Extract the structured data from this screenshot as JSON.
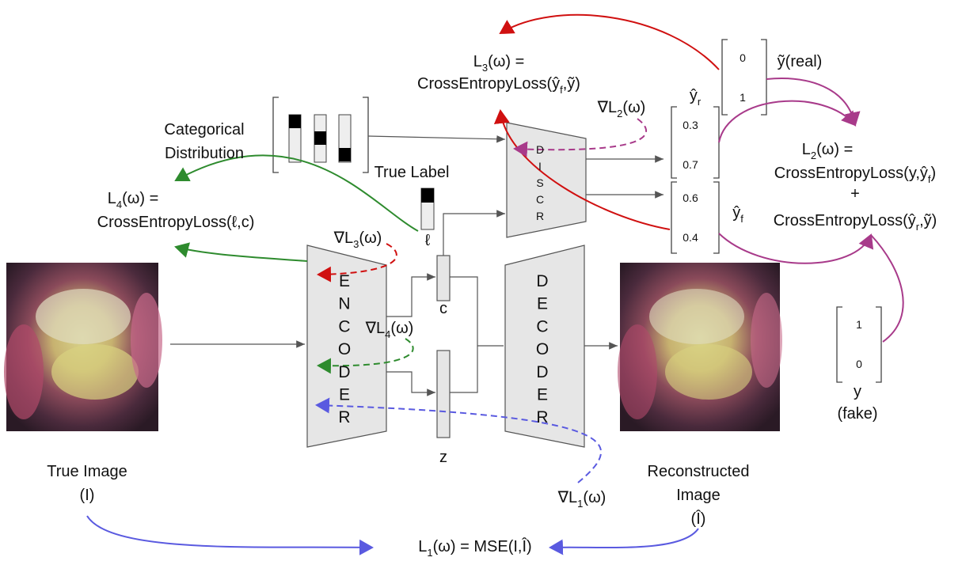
{
  "categorical_distribution": [
    "Categorical",
    "Distribution"
  ],
  "true_label": {
    "title": "True Label",
    "symbol": "ℓ"
  },
  "encoder": {
    "letters": [
      "E",
      "N",
      "C",
      "O",
      "D",
      "E",
      "R"
    ]
  },
  "decoder": {
    "letters": [
      "D",
      "E",
      "C",
      "O",
      "D",
      "E",
      "R"
    ]
  },
  "discriminator": {
    "letters": [
      "D",
      "I",
      "S",
      "C",
      "R"
    ]
  },
  "latent": {
    "c": "c",
    "z": "z"
  },
  "true_image": [
    "True Image",
    "(I)"
  ],
  "reconstructed_image": [
    "Reconstructed",
    "Image",
    "(Î)"
  ],
  "predictions": {
    "real": {
      "label": [
        "ŷ",
        "r"
      ],
      "values": [
        0.3,
        0.7
      ]
    },
    "fake": {
      "label": [
        "ŷ",
        "f"
      ],
      "values": [
        0.6,
        0.4
      ]
    }
  },
  "targets": {
    "real": {
      "values": [
        0,
        1
      ],
      "label": "ỹ(real)"
    },
    "fake": {
      "values": [
        1,
        0
      ],
      "label": [
        "y",
        "(fake)"
      ]
    }
  },
  "losses": {
    "l1": [
      "L",
      "1",
      "(ω) = MSE(I,Î)"
    ],
    "l2": [
      [
        "L",
        "2",
        "(ω) ="
      ],
      [
        "CrossEntropyLoss(y,ŷ",
        "f",
        ")"
      ],
      [
        "+"
      ],
      [
        "CrossEntropyLoss(ŷ",
        "r",
        ",ỹ)"
      ]
    ],
    "l3": [
      [
        "L",
        "3",
        "(ω) ="
      ],
      [
        "CrossEntropyLoss(ŷ",
        "f",
        ",ỹ)"
      ]
    ],
    "l4": [
      [
        "L",
        "4",
        "(ω) ="
      ],
      [
        "CrossEntropyLoss(ℓ,c)"
      ]
    ]
  },
  "gradients": {
    "l1": [
      "∇L",
      "1",
      "(ω)"
    ],
    "l2": [
      "∇L",
      "2",
      "(ω)"
    ],
    "l3": [
      "∇L",
      "3",
      "(ω)"
    ],
    "l4": [
      "∇L",
      "4",
      "(ω)"
    ]
  }
}
